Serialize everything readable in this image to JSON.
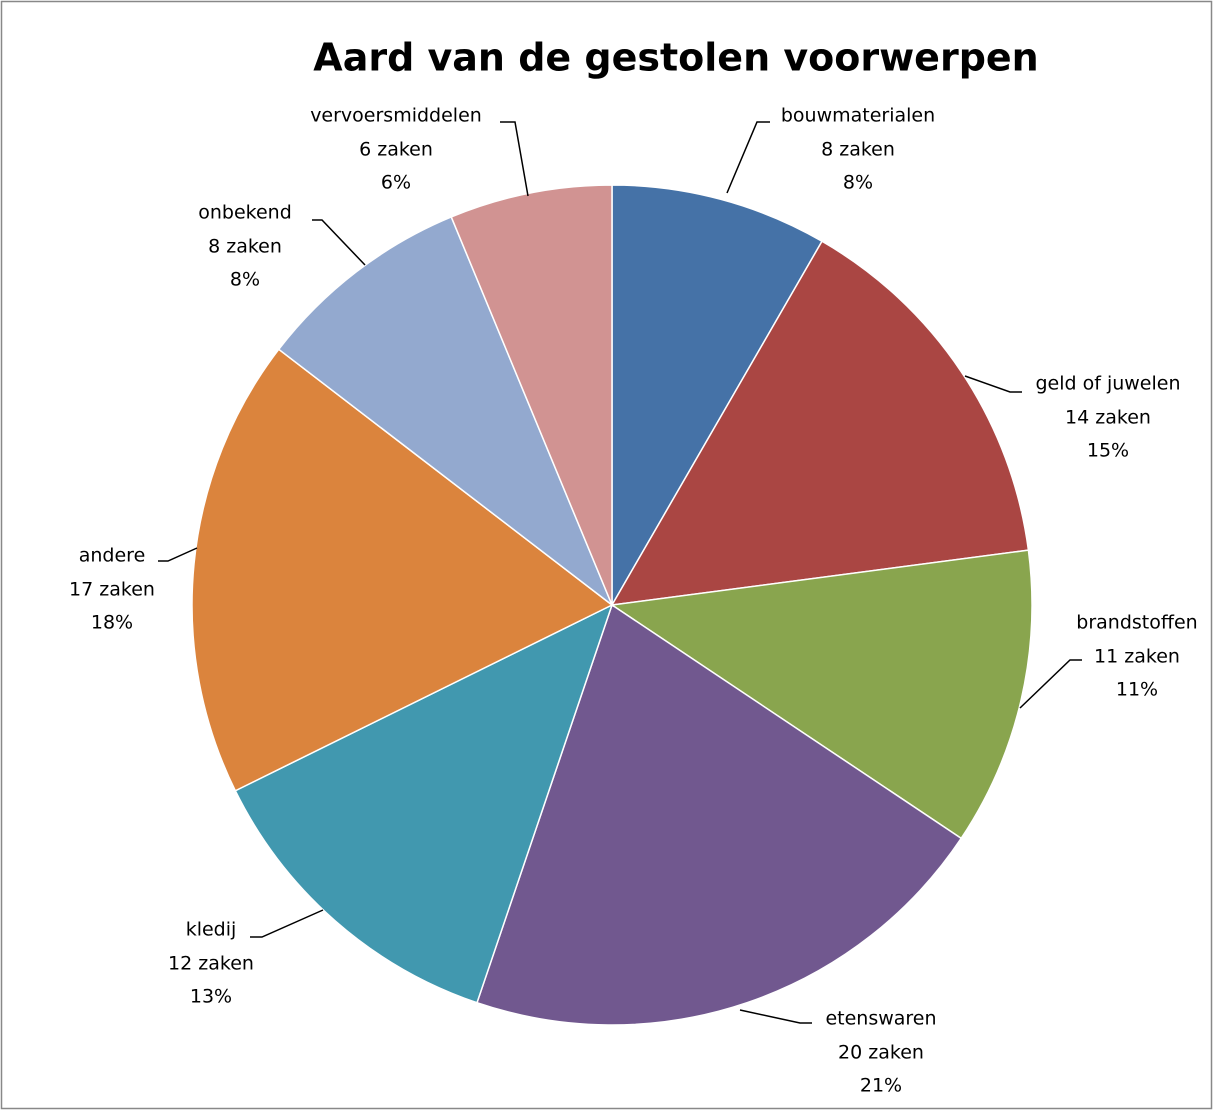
{
  "chart_data": {
    "type": "pie",
    "title": "Aard van de gestolen voorwerpen",
    "categories": [
      "bouwmaterialen",
      "geld of juwelen",
      "brandstoffen",
      "etenswaren",
      "kledij",
      "andere",
      "onbekend",
      "vervoersmiddelen"
    ],
    "values": [
      8,
      14,
      11,
      20,
      12,
      17,
      8,
      6
    ],
    "value_labels": [
      "8 zaken",
      "14 zaken",
      "11 zaken",
      "20 zaken",
      "12 zaken",
      "17 zaken",
      "8 zaken",
      "6 zaken"
    ],
    "percent_labels": [
      "8%",
      "15%",
      "11%",
      "21%",
      "13%",
      "18%",
      "8%",
      "6%"
    ],
    "colors": [
      "#4572a7",
      "#aa4643",
      "#89a54e",
      "#71588f",
      "#4198af",
      "#db843d",
      "#93a9cf",
      "#d19392"
    ]
  }
}
